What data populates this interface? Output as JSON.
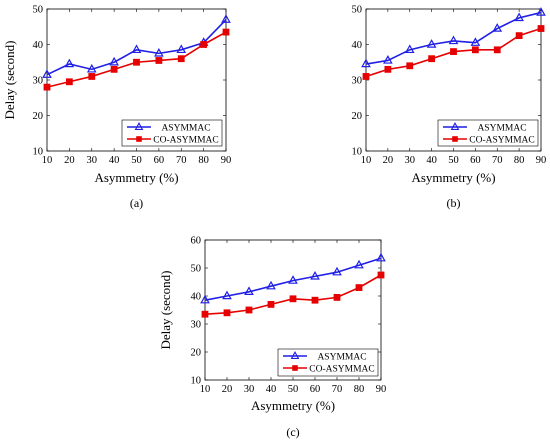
{
  "colors": {
    "asymmac": "#1f1fe6",
    "co_asymmac": "#e60000"
  },
  "chart_data": [
    {
      "type": "line",
      "panel_label": "(a)",
      "xlabel": "Asymmetry (%)",
      "ylabel": "Delay (second)",
      "x": [
        10,
        20,
        30,
        40,
        50,
        60,
        70,
        80,
        90
      ],
      "xlim": [
        10,
        90
      ],
      "ylim": [
        10,
        50
      ],
      "yticks": [
        10,
        20,
        30,
        40,
        50
      ],
      "grid": false,
      "legend_position": "bottom-right",
      "series": [
        {
          "name": "ASYMMAC",
          "marker": "triangle",
          "values": [
            31.5,
            34.5,
            33,
            35,
            38.5,
            37.5,
            38.5,
            40.5,
            47
          ]
        },
        {
          "name": "CO-ASYMMAC",
          "marker": "square",
          "values": [
            28,
            29.5,
            31,
            33,
            35,
            35.5,
            36,
            40,
            43.5
          ]
        }
      ]
    },
    {
      "type": "line",
      "panel_label": "(b)",
      "xlabel": "Asymmetry (%)",
      "ylabel": "",
      "x": [
        10,
        20,
        30,
        40,
        50,
        60,
        70,
        80,
        90
      ],
      "xlim": [
        10,
        90
      ],
      "ylim": [
        10,
        50
      ],
      "yticks": [
        10,
        20,
        30,
        40,
        50
      ],
      "grid": false,
      "legend_position": "bottom-right",
      "series": [
        {
          "name": "ASYMMAC",
          "marker": "triangle",
          "values": [
            34.5,
            35.5,
            38.5,
            40,
            41,
            40.5,
            44.5,
            47.5,
            49
          ]
        },
        {
          "name": "CO-ASYMMAC",
          "marker": "square",
          "values": [
            31,
            33,
            34,
            36,
            38,
            38.5,
            38.5,
            42.5,
            44.5
          ]
        }
      ]
    },
    {
      "type": "line",
      "panel_label": "(c)",
      "xlabel": "Asymmetry (%)",
      "ylabel": "Delay (second)",
      "x": [
        10,
        20,
        30,
        40,
        50,
        60,
        70,
        80,
        90
      ],
      "xlim": [
        10,
        90
      ],
      "ylim": [
        10,
        60
      ],
      "yticks": [
        10,
        20,
        30,
        40,
        50,
        60
      ],
      "grid": false,
      "legend_position": "bottom-right",
      "series": [
        {
          "name": "ASYMMAC",
          "marker": "triangle",
          "values": [
            38.5,
            40,
            41.5,
            43.5,
            45.5,
            47,
            48.5,
            51,
            53.5
          ]
        },
        {
          "name": "CO-ASYMMAC",
          "marker": "square",
          "values": [
            33.5,
            34,
            35,
            37,
            39,
            38.5,
            39.5,
            43,
            47.5
          ]
        }
      ]
    }
  ]
}
